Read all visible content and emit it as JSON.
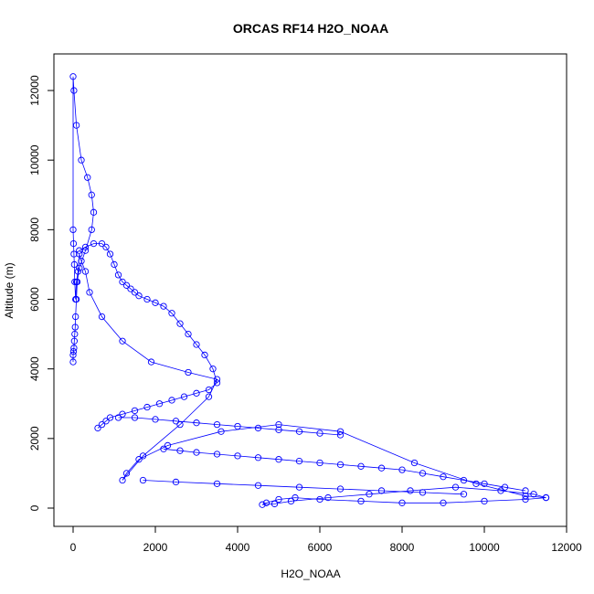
{
  "chart_data": {
    "type": "scatter",
    "title": "ORCAS RF14 H2O_NOAA",
    "xlabel": "H2O_NOAA",
    "ylabel": "Altitude (m)",
    "xlim": [
      0,
      12000
    ],
    "ylim": [
      0,
      12500
    ],
    "x_ticks": [
      0,
      2000,
      4000,
      6000,
      8000,
      10000,
      12000
    ],
    "y_ticks": [
      0,
      2000,
      4000,
      6000,
      8000,
      10000,
      12000
    ],
    "marker": "open-circle",
    "connected": true,
    "grid": false,
    "series": [
      {
        "color": "#0000ff",
        "x": [
          11500,
          11000,
          10000,
          9000,
          8000,
          7000,
          6000,
          5400,
          5000,
          4700,
          4600,
          4900,
          5300,
          6200,
          7200,
          8200,
          9300,
          10400,
          11200,
          11500,
          11000,
          9800,
          8300,
          6500,
          5000,
          3600,
          2300,
          1600,
          1300,
          1200,
          1700,
          2600,
          3300,
          3500,
          2800,
          1900,
          1200,
          700,
          400,
          300,
          200,
          150,
          120,
          80,
          60,
          40,
          30,
          20,
          10,
          0,
          0,
          20,
          80,
          200,
          350,
          450,
          500,
          450,
          300,
          150,
          100,
          80,
          60,
          50,
          40,
          30,
          20,
          10,
          0,
          0
        ],
        "y": [
          300,
          250,
          200,
          150,
          150,
          200,
          250,
          300,
          250,
          150,
          100,
          120,
          200,
          300,
          400,
          500,
          600,
          500,
          400,
          300,
          350,
          700,
          1300,
          2200,
          2400,
          2200,
          1800,
          1400,
          1000,
          800,
          1500,
          2400,
          3200,
          3700,
          3900,
          4200,
          4800,
          5500,
          6200,
          6800,
          7100,
          7300,
          6800,
          6500,
          6000,
          6500,
          7000,
          7300,
          7600,
          8000,
          12400,
          12000,
          11000,
          10000,
          9500,
          9000,
          8500,
          8000,
          7400,
          6900,
          6500,
          6000,
          5500,
          5200,
          5000,
          4800,
          4600,
          4500,
          4400,
          4200
        ]
      },
      {
        "color": "#0000ff",
        "x": [
          150,
          300,
          500,
          700,
          800,
          900,
          1000,
          1100,
          1200,
          1300,
          1400,
          1500,
          1600,
          1800,
          2000,
          2200,
          2400,
          2600,
          2800,
          3000,
          3200,
          3400,
          3500,
          3300,
          3000,
          2700,
          2400,
          2100,
          1800,
          1500,
          1200,
          900,
          800,
          700,
          600
        ],
        "y": [
          7400,
          7500,
          7600,
          7600,
          7500,
          7300,
          7000,
          6700,
          6500,
          6400,
          6300,
          6200,
          6100,
          6000,
          5900,
          5800,
          5600,
          5300,
          5000,
          4700,
          4400,
          4000,
          3600,
          3400,
          3300,
          3200,
          3100,
          3000,
          2900,
          2800,
          2700,
          2600,
          2500,
          2400,
          2300
        ]
      },
      {
        "color": "#0000ff",
        "x": [
          2200,
          2600,
          3000,
          3500,
          4000,
          4500,
          5000,
          5500,
          6000,
          6500,
          7000,
          7500,
          8000,
          8500,
          9000,
          9500,
          10000,
          10500,
          11000
        ],
        "y": [
          1700,
          1650,
          1600,
          1550,
          1500,
          1450,
          1400,
          1350,
          1300,
          1250,
          1200,
          1150,
          1100,
          1000,
          900,
          800,
          700,
          600,
          500
        ]
      },
      {
        "color": "#0000ff",
        "x": [
          1700,
          2500,
          3500,
          4500,
          5500,
          6500,
          7500,
          8500,
          9500
        ],
        "y": [
          800,
          750,
          700,
          650,
          600,
          550,
          500,
          450,
          400
        ]
      },
      {
        "color": "#0000ff",
        "x": [
          1100,
          1500,
          2000,
          2500,
          3000,
          3500,
          4000,
          4500,
          5000,
          5500,
          6000,
          6500
        ],
        "y": [
          2600,
          2600,
          2550,
          2500,
          2450,
          2400,
          2350,
          2300,
          2250,
          2200,
          2150,
          2100
        ]
      }
    ]
  }
}
